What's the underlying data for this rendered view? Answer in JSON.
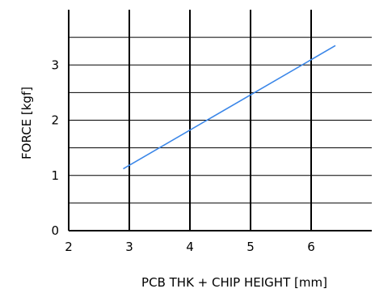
{
  "chart_data": {
    "type": "line",
    "title": "",
    "xlabel": "PCB THK + CHIP HEIGHT [mm]",
    "ylabel": "FORCE [kgf]",
    "xlim": [
      2,
      7
    ],
    "ylim": [
      0,
      4
    ],
    "x_ticks": [
      "2",
      "3",
      "4",
      "5",
      "6"
    ],
    "y_ticks": [
      "0",
      "1",
      "2",
      "3"
    ],
    "x_gridlines": [
      3,
      4,
      5,
      6
    ],
    "y_gridlines": [
      0.5,
      1,
      1.5,
      2,
      2.5,
      3,
      3.5
    ],
    "grid": true,
    "series_color": "#3a86e8",
    "series": [
      {
        "x": [
          2.9,
          6.4
        ],
        "y": [
          1.12,
          3.35
        ]
      }
    ]
  }
}
